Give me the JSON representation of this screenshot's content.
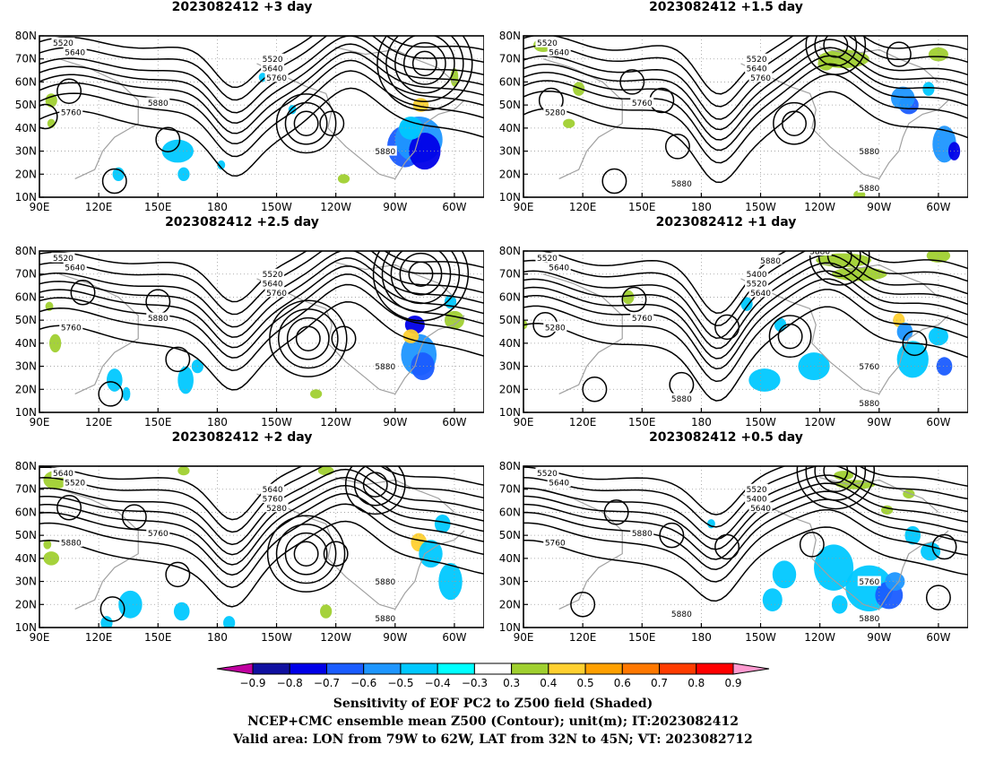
{
  "panels": [
    {
      "title": "2023082412  +3 day",
      "contour_labels": [
        "5520",
        "5640",
        "5520",
        "5640",
        "5760",
        "5760",
        "5880",
        "5880"
      ]
    },
    {
      "title": "2023082412  +1.5 day",
      "contour_labels": [
        "5520",
        "5640",
        "5520",
        "5640",
        "5760",
        "5280",
        "5760",
        "5880",
        "5880",
        "5880"
      ]
    },
    {
      "title": "2023082412  +2.5 day",
      "contour_labels": [
        "5520",
        "5640",
        "5520",
        "5640",
        "5760",
        "5760",
        "5880",
        "5880"
      ]
    },
    {
      "title": "2023082412  +1 day",
      "contour_labels": [
        "5520",
        "5640",
        "5400",
        "5520",
        "5640",
        "5280",
        "5760",
        "5760",
        "5880",
        "5880",
        "5880",
        "5880"
      ]
    },
    {
      "title": "2023082412  +2 day",
      "contour_labels": [
        "5640",
        "5520",
        "5640",
        "5760",
        "5280",
        "5880",
        "5760",
        "5880",
        "5880"
      ]
    },
    {
      "title": "2023082412  +0.5 day",
      "contour_labels": [
        "5520",
        "5640",
        "5520",
        "5400",
        "5640",
        "5760",
        "5880",
        "5760",
        "5880",
        "5880"
      ]
    }
  ],
  "axes": {
    "lon_ticks": [
      "90E",
      "120E",
      "150E",
      "180",
      "150W",
      "120W",
      "90W",
      "60W"
    ],
    "lat_ticks": [
      "80N",
      "70N",
      "60N",
      "50N",
      "40N",
      "30N",
      "20N",
      "10N"
    ]
  },
  "colorbar": {
    "labels": [
      "−0.9",
      "−0.8",
      "−0.7",
      "−0.6",
      "−0.5",
      "−0.4",
      "−0.3",
      "0.3",
      "0.4",
      "0.5",
      "0.6",
      "0.7",
      "0.8",
      "0.9"
    ],
    "colors": [
      "#c000a0",
      "#1010a0",
      "#0000e8",
      "#1a5cff",
      "#1e96ff",
      "#00c8ff",
      "#00ffff",
      "#ffffff",
      "#a0d030",
      "#ffd030",
      "#ffa000",
      "#ff7800",
      "#ff3c00",
      "#ff0000",
      "#ff9ad0"
    ]
  },
  "caption": {
    "line1": "Sensitivity of EOF PC2 to Z500 field (Shaded)",
    "line2": "NCEP+CMC ensemble mean Z500 (Contour); unit(m); IT:2023082412",
    "line3": "Valid area: LON from 79W to 62W, LAT from 32N to 45N; VT: 2023082712"
  }
}
